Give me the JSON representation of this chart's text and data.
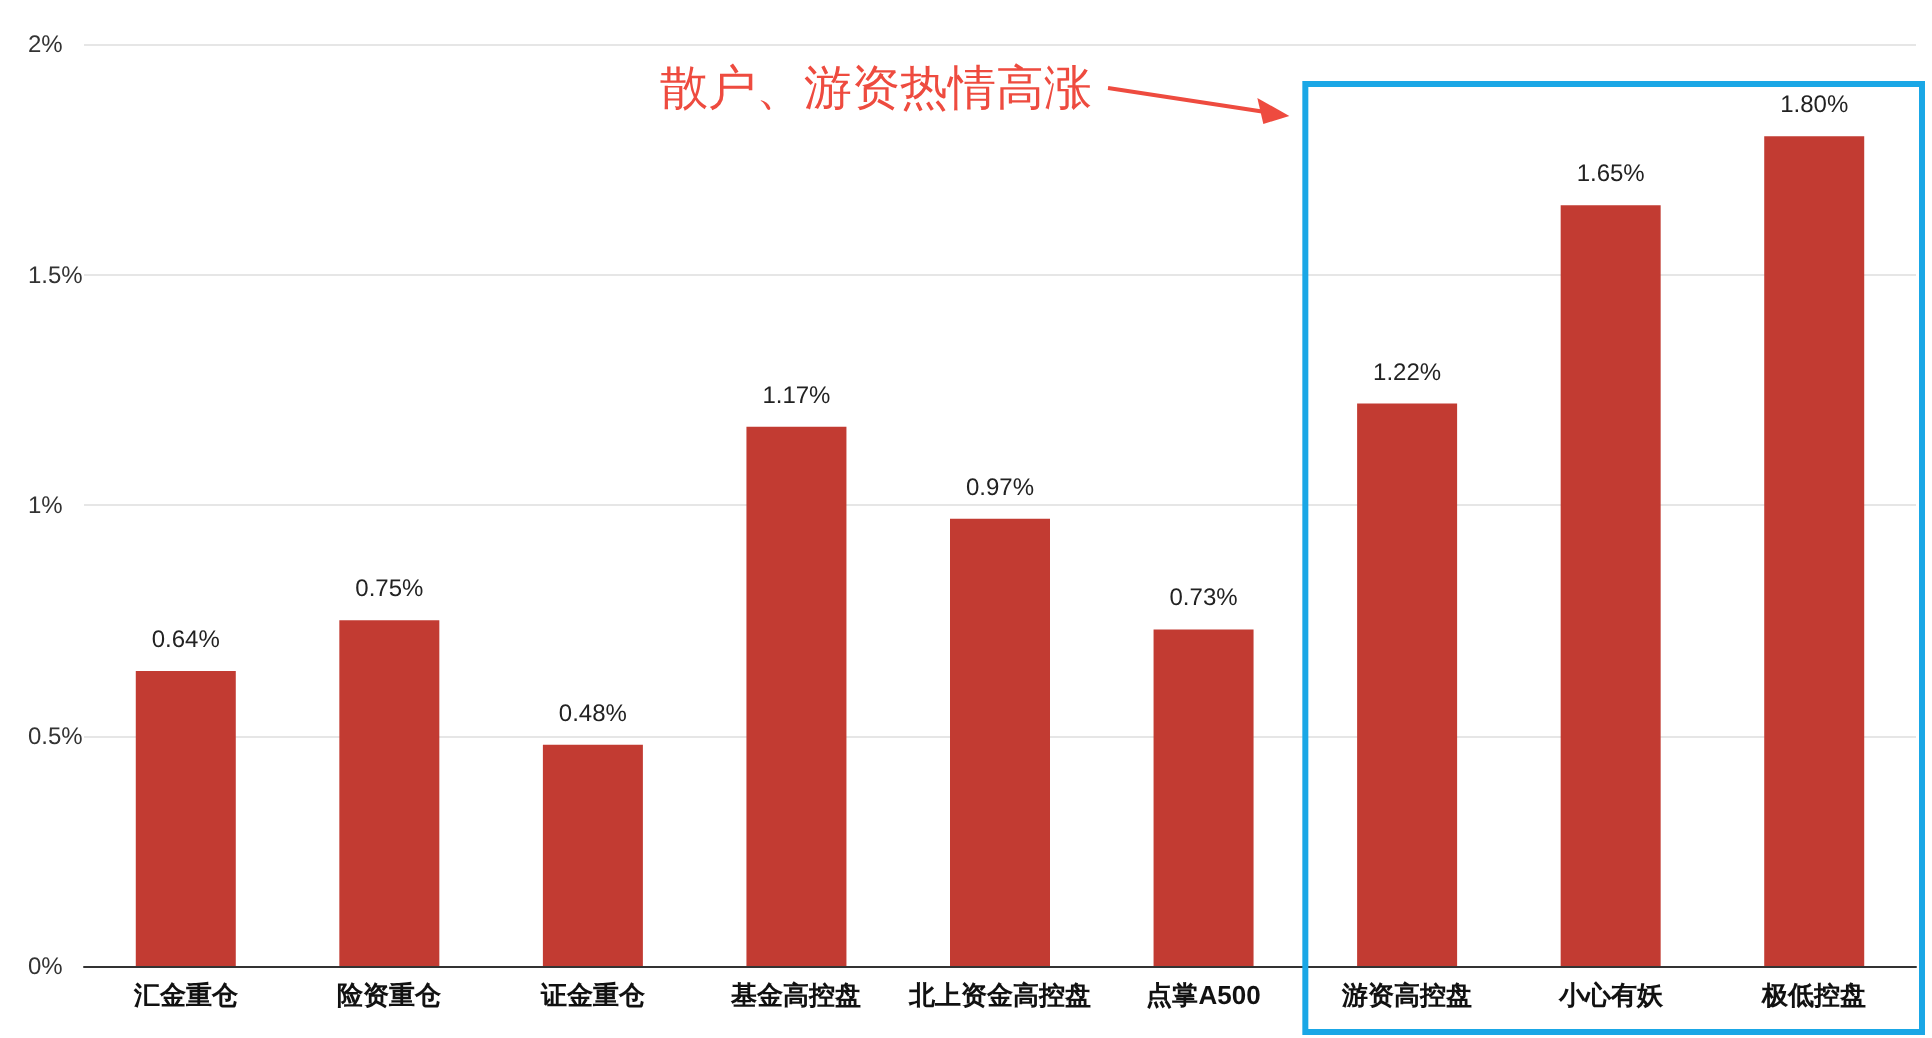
{
  "chart_data": {
    "type": "bar",
    "categories": [
      "汇金重仓",
      "险资重仓",
      "证金重仓",
      "基金高控盘",
      "北上资金高控盘",
      "点掌A500",
      "游资高控盘",
      "小心有妖",
      "极低控盘"
    ],
    "values": [
      0.64,
      0.75,
      0.48,
      1.17,
      0.97,
      0.73,
      1.22,
      1.65,
      1.8
    ],
    "value_labels": [
      "0.64%",
      "0.75%",
      "0.48%",
      "1.17%",
      "0.97%",
      "0.73%",
      "1.22%",
      "1.65%",
      "1.80%"
    ],
    "color": "#c23b32",
    "ylim": [
      0,
      2
    ],
    "yticks": [
      {
        "value": 0,
        "label": "0%"
      },
      {
        "value": 0.5,
        "label": "0.5%"
      },
      {
        "value": 1,
        "label": "1%"
      },
      {
        "value": 1.5,
        "label": "1.5%"
      },
      {
        "value": 2,
        "label": "2%"
      }
    ],
    "grid": "y",
    "annotations": [
      "散户、游资热情高涨"
    ]
  }
}
